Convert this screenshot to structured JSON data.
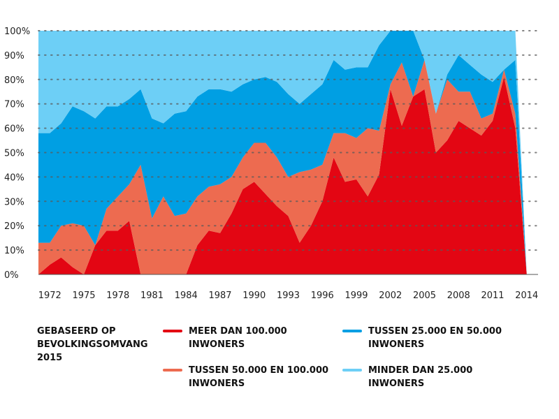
{
  "chart_data": {
    "type": "area",
    "stacked": true,
    "percent": true,
    "grid": true,
    "legend_position": "bottom",
    "ylim": [
      0,
      100
    ],
    "y_ticks": [
      "0%",
      "10%",
      "20%",
      "30%",
      "40%",
      "50%",
      "60%",
      "70%",
      "80%",
      "90%",
      "100%"
    ],
    "x_ticks": [
      "1972",
      "1975",
      "1978",
      "1981",
      "1984",
      "1987",
      "1990",
      "1993",
      "1996",
      "1999",
      "2002",
      "2005",
      "2008",
      "2011",
      "2014"
    ],
    "legend_title_lines": [
      "GEBASEERD OP",
      "BEVOLKINGSOMVANG",
      "2015"
    ],
    "x": [
      1971,
      1972,
      1973,
      1974,
      1975,
      1976,
      1977,
      1978,
      1979,
      1980,
      1981,
      1982,
      1983,
      1984,
      1985,
      1986,
      1987,
      1988,
      1989,
      1990,
      1991,
      1992,
      1993,
      1994,
      1995,
      1996,
      1997,
      1998,
      1999,
      2000,
      2001,
      2002,
      2003,
      2004,
      2005,
      2006,
      2007,
      2008,
      2009,
      2010,
      2011,
      2012,
      2013,
      2014,
      2015
    ],
    "series": [
      {
        "name": "MEER DAN 100.000 INWONERS",
        "label_lines": [
          "MEER DAN 100.000",
          "INWONERS"
        ],
        "color": "#e30613",
        "values": [
          0,
          4,
          7,
          3,
          0,
          12,
          18,
          18,
          22,
          0,
          0,
          0,
          0,
          0,
          12,
          18,
          17,
          25,
          35,
          38,
          33,
          28,
          24,
          13,
          20,
          30,
          48,
          38,
          39,
          32,
          41,
          76,
          61,
          73,
          76,
          50,
          55,
          63,
          60,
          57,
          63,
          81,
          60,
          0,
          0
        ]
      },
      {
        "name": "TUSSEN 50.000 EN 100.000 INWONERS",
        "label_lines": [
          "TUSSEN 50.000 EN 100.000",
          "INWONERS"
        ],
        "color": "#ed6b50",
        "values": [
          13,
          9,
          13,
          18,
          20,
          0,
          9,
          14,
          15,
          45,
          23,
          32,
          24,
          25,
          20,
          18,
          20,
          15,
          13,
          16,
          21,
          20,
          16,
          29,
          23,
          15,
          10,
          20,
          17,
          28,
          18,
          2,
          26,
          0,
          12,
          16,
          25,
          12,
          15,
          7,
          3,
          3,
          6,
          0,
          0
        ]
      },
      {
        "name": "TUSSEN 25.000 EN 50.000 INWONERS",
        "label_lines": [
          "TUSSEN 25.000 EN 50.000",
          "INWONERS"
        ],
        "color": "#009fe3",
        "values": [
          45,
          45,
          42,
          48,
          47,
          52,
          42,
          37,
          35,
          31,
          41,
          30,
          42,
          42,
          41,
          40,
          39,
          35,
          30,
          26,
          27,
          31,
          34,
          28,
          31,
          33,
          30,
          26,
          29,
          25,
          35,
          22,
          13,
          27,
          0,
          0,
          2,
          15,
          11,
          18,
          13,
          0,
          22,
          0,
          0
        ]
      },
      {
        "name": "MINDER DAN 25.000 INWONERS",
        "label_lines": [
          "MINDER DAN 25.000",
          "INWONERS"
        ],
        "color": "#6dcff6",
        "values": [
          42,
          42,
          38,
          31,
          33,
          36,
          31,
          31,
          28,
          24,
          36,
          38,
          34,
          33,
          27,
          24,
          24,
          25,
          22,
          20,
          19,
          21,
          26,
          30,
          26,
          22,
          12,
          16,
          15,
          15,
          6,
          0,
          0,
          0,
          12,
          34,
          18,
          10,
          14,
          18,
          21,
          16,
          12,
          0,
          0
        ]
      }
    ]
  }
}
